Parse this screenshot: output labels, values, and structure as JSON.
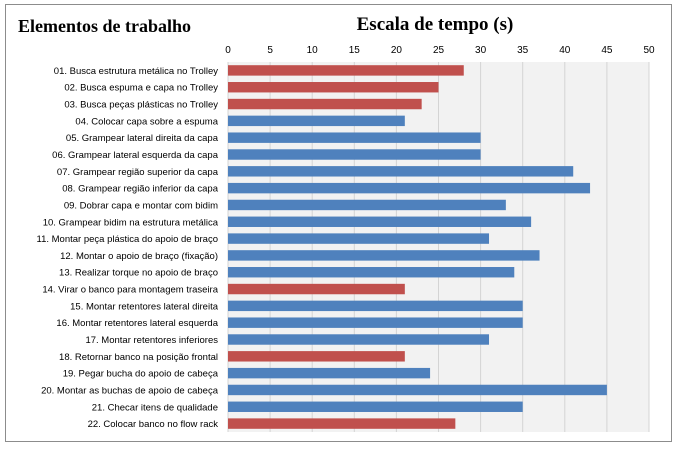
{
  "chart_data": {
    "type": "bar",
    "orientation": "horizontal",
    "title": "Escala de tempo (s)",
    "ylabel": "Elementos de trabalho",
    "xlabel": "",
    "xlim": [
      0,
      50
    ],
    "x_ticks": [
      "0",
      "5",
      "10",
      "15",
      "20",
      "25",
      "30",
      "35",
      "40",
      "45",
      "50"
    ],
    "x_axis_position": "top",
    "grid": true,
    "colors": {
      "red": "#c0504d",
      "blue": "#4f81bd",
      "plot_bg": "#f2f2f2",
      "grid": "#d4d4d4"
    },
    "categories": [
      "01. Busca estrutura metálica no Trolley",
      "02. Busca espuma e capa no Trolley",
      "03. Busca peças plásticas no Trolley",
      "04. Colocar capa sobre a espuma",
      "05. Grampear lateral direita da capa",
      "06. Grampear lateral esquerda da capa",
      "07. Grampear região superior da capa",
      "08. Grampear região inferior da capa",
      "09. Dobrar capa e montar com bidim",
      "10. Grampear bidim na estrutura metálica",
      "11. Montar peça plástica do apoio de braço",
      "12. Montar o apoio de braço (fixação)",
      "13. Realizar torque no apoio de braço",
      "14. Virar o banco para montagem traseira",
      "15. Montar retentores lateral direita",
      "16. Montar retentores lateral esquerda",
      "17. Montar retentores inferiores",
      "18. Retornar banco na posição frontal",
      "19. Pegar bucha do apoio de cabeça",
      "20. Montar as buchas de apoio de cabeça",
      "21. Checar itens de qualidade",
      "22. Colocar banco no flow rack"
    ],
    "values": [
      28,
      25,
      23,
      21,
      30,
      30,
      41,
      43,
      33,
      36,
      31,
      37,
      34,
      21,
      35,
      35,
      31,
      21,
      24,
      45,
      35,
      27
    ],
    "bar_colors": [
      "red",
      "red",
      "red",
      "blue",
      "blue",
      "blue",
      "blue",
      "blue",
      "blue",
      "blue",
      "blue",
      "blue",
      "blue",
      "red",
      "blue",
      "blue",
      "blue",
      "red",
      "blue",
      "blue",
      "blue",
      "red"
    ]
  }
}
